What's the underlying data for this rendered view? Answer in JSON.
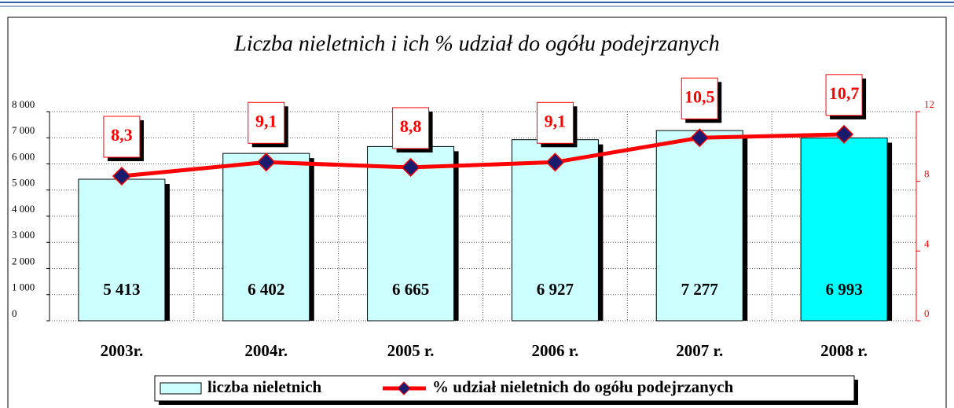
{
  "chart_data": {
    "type": "bar-line",
    "title": "Liczba nieletnich i ich % udział do ogółu podejrzanych",
    "categories": [
      "2003r.",
      "2004r.",
      "2005 r.",
      "2006 r.",
      "2007 r.",
      "2008 r."
    ],
    "series": [
      {
        "name": "liczba nieletnich",
        "type": "bar",
        "colors": [
          "#ccffff",
          "#ccffff",
          "#ccffff",
          "#ccffff",
          "#ccffff",
          "#00ffff"
        ],
        "values": [
          5413,
          6402,
          6665,
          6927,
          7277,
          6993
        ],
        "value_labels": [
          "5 413",
          "6 402",
          "6 665",
          "6 927",
          "7 277",
          "6 993"
        ]
      },
      {
        "name": "% udział nieletnich do ogółu podejrzanych",
        "type": "line",
        "axis": "y2",
        "color": "#ff0000",
        "marker_color": "#1a1a6e",
        "values": [
          8.3,
          9.1,
          8.8,
          9.1,
          10.5,
          10.7
        ],
        "value_labels": [
          "8,3",
          "9,1",
          "8,8",
          "9,1",
          "10,5",
          "10,7"
        ]
      }
    ],
    "ylim": [
      0,
      8000
    ],
    "yticks": [
      0,
      {
        "value": 1000,
        "label": "1 000"
      },
      {
        "value": 2000,
        "label": "2 000"
      },
      {
        "value": 3000,
        "label": "3 000"
      },
      {
        "value": 4000,
        "label": "4 000"
      },
      {
        "value": 5000,
        "label": "5 000"
      },
      {
        "value": 6000,
        "label": "6 000"
      },
      {
        "value": 7000,
        "label": "7 000"
      },
      {
        "value": 8000,
        "label": "8 000"
      }
    ],
    "y2lim": [
      0,
      12
    ],
    "y2ticks": [
      0,
      4,
      8,
      12
    ],
    "grid": true
  }
}
